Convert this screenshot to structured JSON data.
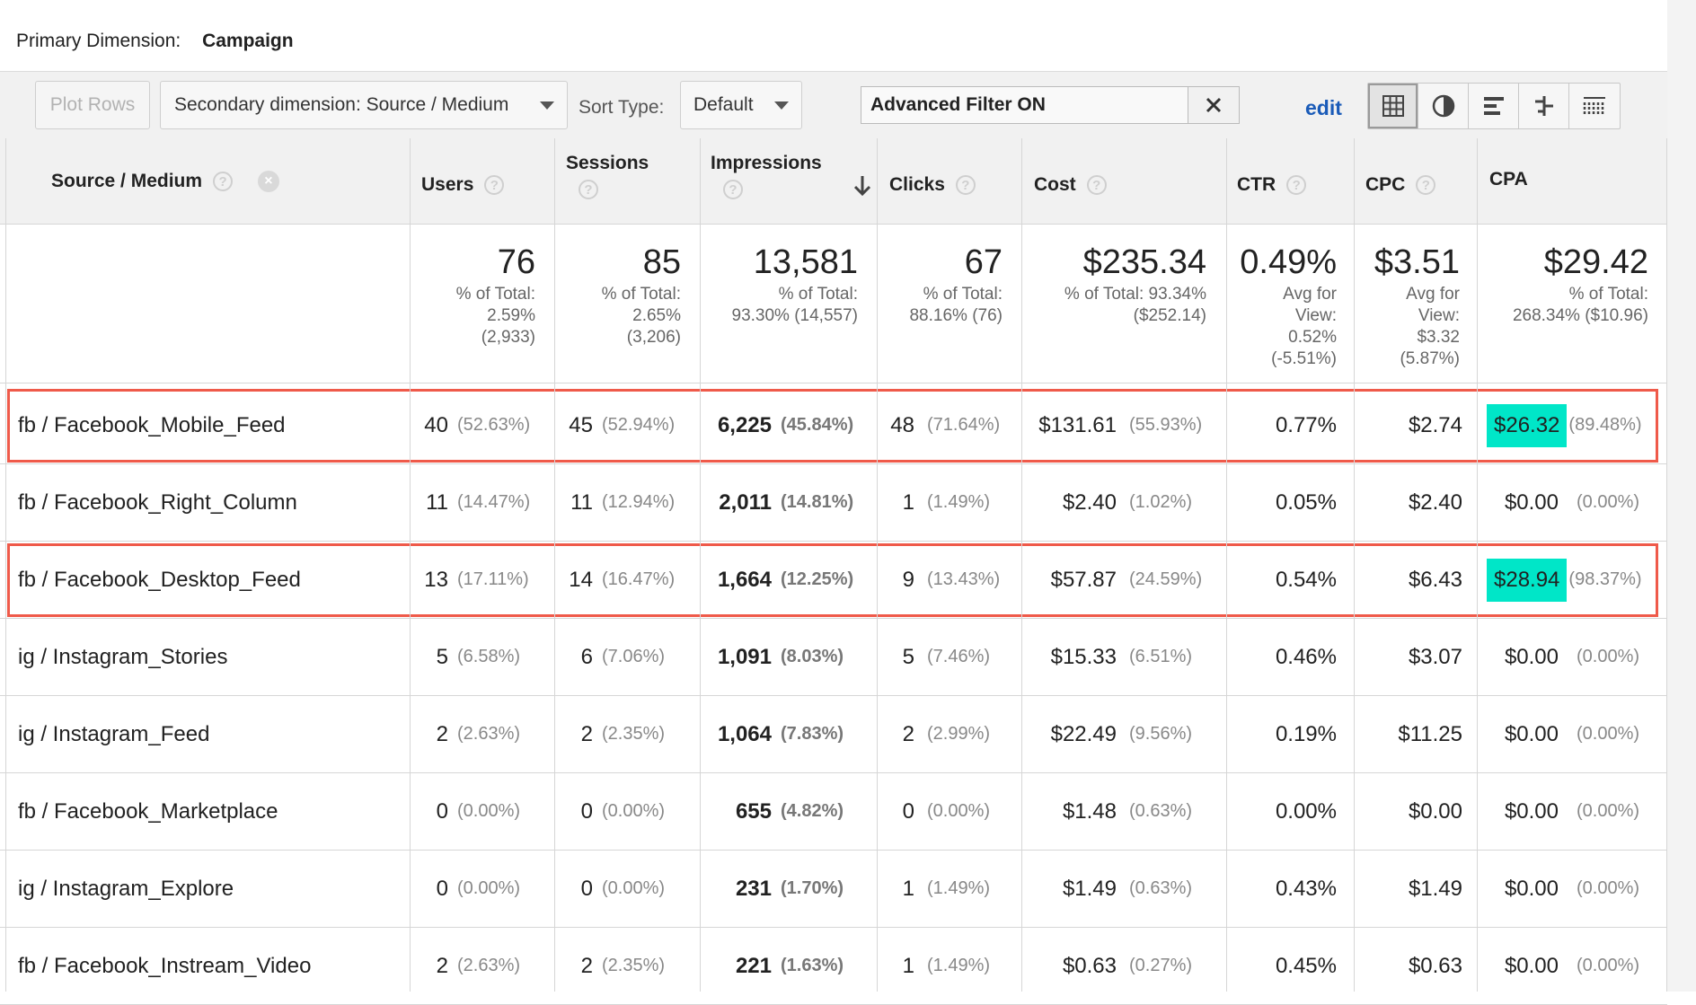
{
  "primary_dimension": {
    "label": "Primary Dimension:",
    "value": "Campaign"
  },
  "toolbar": {
    "plot_rows": "Plot Rows",
    "secondary_dimension": "Secondary dimension: Source / Medium",
    "sort_label": "Sort Type:",
    "sort_value": "Default",
    "filter_text": "Advanced Filter ON",
    "edit": "edit",
    "views": [
      "grid-view-icon",
      "pie-view-icon",
      "bar-view-icon",
      "comparison-view-icon",
      "pivot-view-icon"
    ]
  },
  "columns": [
    "Source / Medium",
    "Users",
    "Sessions",
    "Impressions",
    "Clicks",
    "Cost",
    "CTR",
    "CPC",
    "CPA"
  ],
  "totals": {
    "users": {
      "value": "76",
      "lines": [
        "% of Total:",
        "2.59%",
        "(2,933)"
      ]
    },
    "sessions": {
      "value": "85",
      "lines": [
        "% of Total:",
        "2.65%",
        "(3,206)"
      ]
    },
    "impressions": {
      "value": "13,581",
      "lines": [
        "% of Total:",
        "93.30% (14,557)"
      ]
    },
    "clicks": {
      "value": "67",
      "lines": [
        "% of Total:",
        "88.16% (76)"
      ]
    },
    "cost": {
      "value": "$235.34",
      "lines": [
        "% of Total: 93.34%",
        "($252.14)"
      ]
    },
    "ctr": {
      "value": "0.49%",
      "lines": [
        "Avg for",
        "View:",
        "0.52%",
        "(-5.51%)"
      ]
    },
    "cpc": {
      "value": "$3.51",
      "lines": [
        "Avg for",
        "View:",
        "$3.32",
        "(5.87%)"
      ]
    },
    "cpa": {
      "value": "$29.42",
      "lines": [
        "% of Total:",
        "268.34% ($10.96)"
      ]
    }
  },
  "rows": [
    {
      "source": "fb / Facebook_Mobile_Feed",
      "users": "40",
      "users_pct": "(52.63%)",
      "sessions": "45",
      "sessions_pct": "(52.94%)",
      "impressions": "6,225",
      "impressions_pct": "(45.84%)",
      "clicks": "48",
      "clicks_pct": "(71.64%)",
      "cost": "$131.61",
      "cost_pct": "(55.93%)",
      "ctr": "0.77%",
      "cpc": "$2.74",
      "cpa": "$26.32",
      "cpa_pct": "(89.48%)"
    },
    {
      "source": "fb / Facebook_Right_Column",
      "users": "11",
      "users_pct": "(14.47%)",
      "sessions": "11",
      "sessions_pct": "(12.94%)",
      "impressions": "2,011",
      "impressions_pct": "(14.81%)",
      "clicks": "1",
      "clicks_pct": "(1.49%)",
      "cost": "$2.40",
      "cost_pct": "(1.02%)",
      "ctr": "0.05%",
      "cpc": "$2.40",
      "cpa": "$0.00",
      "cpa_pct": "(0.00%)"
    },
    {
      "source": "fb / Facebook_Desktop_Feed",
      "users": "13",
      "users_pct": "(17.11%)",
      "sessions": "14",
      "sessions_pct": "(16.47%)",
      "impressions": "1,664",
      "impressions_pct": "(12.25%)",
      "clicks": "9",
      "clicks_pct": "(13.43%)",
      "cost": "$57.87",
      "cost_pct": "(24.59%)",
      "ctr": "0.54%",
      "cpc": "$6.43",
      "cpa": "$28.94",
      "cpa_pct": "(98.37%)"
    },
    {
      "source": "ig / Instagram_Stories",
      "users": "5",
      "users_pct": "(6.58%)",
      "sessions": "6",
      "sessions_pct": "(7.06%)",
      "impressions": "1,091",
      "impressions_pct": "(8.03%)",
      "clicks": "5",
      "clicks_pct": "(7.46%)",
      "cost": "$15.33",
      "cost_pct": "(6.51%)",
      "ctr": "0.46%",
      "cpc": "$3.07",
      "cpa": "$0.00",
      "cpa_pct": "(0.00%)"
    },
    {
      "source": "ig / Instagram_Feed",
      "users": "2",
      "users_pct": "(2.63%)",
      "sessions": "2",
      "sessions_pct": "(2.35%)",
      "impressions": "1,064",
      "impressions_pct": "(7.83%)",
      "clicks": "2",
      "clicks_pct": "(2.99%)",
      "cost": "$22.49",
      "cost_pct": "(9.56%)",
      "ctr": "0.19%",
      "cpc": "$11.25",
      "cpa": "$0.00",
      "cpa_pct": "(0.00%)"
    },
    {
      "source": "fb / Facebook_Marketplace",
      "users": "0",
      "users_pct": "(0.00%)",
      "sessions": "0",
      "sessions_pct": "(0.00%)",
      "impressions": "655",
      "impressions_pct": "(4.82%)",
      "clicks": "0",
      "clicks_pct": "(0.00%)",
      "cost": "$1.48",
      "cost_pct": "(0.63%)",
      "ctr": "0.00%",
      "cpc": "$0.00",
      "cpa": "$0.00",
      "cpa_pct": "(0.00%)"
    },
    {
      "source": "ig / Instagram_Explore",
      "users": "0",
      "users_pct": "(0.00%)",
      "sessions": "0",
      "sessions_pct": "(0.00%)",
      "impressions": "231",
      "impressions_pct": "(1.70%)",
      "clicks": "1",
      "clicks_pct": "(1.49%)",
      "cost": "$1.49",
      "cost_pct": "(0.63%)",
      "ctr": "0.43%",
      "cpc": "$1.49",
      "cpa": "$0.00",
      "cpa_pct": "(0.00%)"
    },
    {
      "source": "fb / Facebook_Instream_Video",
      "users": "2",
      "users_pct": "(2.63%)",
      "sessions": "2",
      "sessions_pct": "(2.35%)",
      "impressions": "221",
      "impressions_pct": "(1.63%)",
      "clicks": "1",
      "clicks_pct": "(1.49%)",
      "cost": "$0.63",
      "cost_pct": "(0.27%)",
      "ctr": "0.45%",
      "cpc": "$0.63",
      "cpa": "$0.00",
      "cpa_pct": "(0.00%)"
    }
  ],
  "highlight": {
    "box_color": "#ef5a4a",
    "cell_color": "#00e6c8",
    "rows": [
      0,
      2
    ]
  }
}
